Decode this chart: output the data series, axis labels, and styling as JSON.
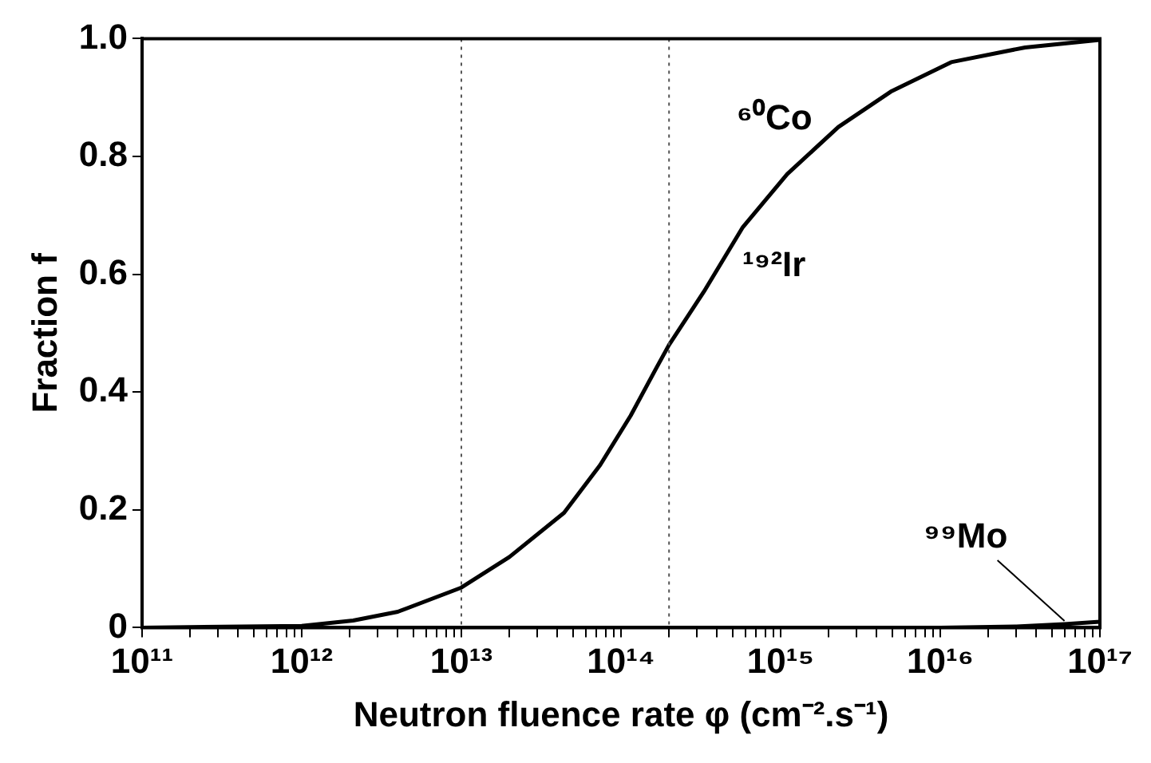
{
  "chart_data": {
    "type": "line",
    "xlabel": "Neutron fluence rate φ (cm⁻².s⁻¹)",
    "ylabel": "Fraction f",
    "log": "x",
    "grid": false,
    "legend": false,
    "marker": "none",
    "line_style": "solid",
    "xlim": [
      100000000000.0,
      1e+17
    ],
    "ylim": [
      0,
      1
    ],
    "xticks": [
      {
        "value": 100000000000.0,
        "label": "10¹¹"
      },
      {
        "value": 200000000000.0,
        "label": null
      },
      {
        "value": 300000000000.0,
        "label": null
      },
      {
        "value": 400000000000.0,
        "label": null
      },
      {
        "value": 500000000000.0,
        "label": null
      },
      {
        "value": 600000000000.0,
        "label": null
      },
      {
        "value": 700000000000.0,
        "label": null
      },
      {
        "value": 800000000000.0,
        "label": null
      },
      {
        "value": 900000000000.0,
        "label": null
      },
      {
        "value": 1000000000000.0,
        "label": "10¹²"
      },
      {
        "value": 2000000000000.0,
        "label": null
      },
      {
        "value": 3000000000000.0,
        "label": null
      },
      {
        "value": 4000000000000.0,
        "label": null
      },
      {
        "value": 5000000000000.0,
        "label": null
      },
      {
        "value": 6000000000000.0,
        "label": null
      },
      {
        "value": 7000000000000.0,
        "label": null
      },
      {
        "value": 8000000000000.0,
        "label": null
      },
      {
        "value": 9000000000000.0,
        "label": null
      },
      {
        "value": 10000000000000.0,
        "label": "10¹³"
      },
      {
        "value": 20000000000000.0,
        "label": null
      },
      {
        "value": 30000000000000.0,
        "label": null
      },
      {
        "value": 40000000000000.0,
        "label": null
      },
      {
        "value": 50000000000000.0,
        "label": null
      },
      {
        "value": 60000000000000.0,
        "label": null
      },
      {
        "value": 70000000000000.0,
        "label": null
      },
      {
        "value": 80000000000000.0,
        "label": null
      },
      {
        "value": 90000000000000.0,
        "label": null
      },
      {
        "value": 100000000000000.0,
        "label": "10¹⁴"
      },
      {
        "value": 200000000000000.0,
        "label": null
      },
      {
        "value": 300000000000000.0,
        "label": null
      },
      {
        "value": 400000000000000.0,
        "label": null
      },
      {
        "value": 500000000000000.0,
        "label": null
      },
      {
        "value": 600000000000000.0,
        "label": null
      },
      {
        "value": 700000000000000.0,
        "label": null
      },
      {
        "value": 800000000000000.0,
        "label": null
      },
      {
        "value": 900000000000000.0,
        "label": null
      },
      {
        "value": 1000000000000000.0,
        "label": "10¹⁵"
      },
      {
        "value": 2000000000000000.0,
        "label": null
      },
      {
        "value": 3000000000000000.0,
        "label": null
      },
      {
        "value": 4000000000000000.0,
        "label": null
      },
      {
        "value": 5000000000000000.0,
        "label": null
      },
      {
        "value": 6000000000000000.0,
        "label": null
      },
      {
        "value": 7000000000000000.0,
        "label": null
      },
      {
        "value": 8000000000000000.0,
        "label": null
      },
      {
        "value": 9000000000000000.0,
        "label": null
      },
      {
        "value": 1e+16,
        "label": "10¹⁶"
      },
      {
        "value": 2e+16,
        "label": null
      },
      {
        "value": 3e+16,
        "label": null
      },
      {
        "value": 4e+16,
        "label": null
      },
      {
        "value": 5e+16,
        "label": null
      },
      {
        "value": 6e+16,
        "label": null
      },
      {
        "value": 7e+16,
        "label": null
      },
      {
        "value": 8e+16,
        "label": null
      },
      {
        "value": 9e+16,
        "label": null
      },
      {
        "value": 1e+17,
        "label": "10¹⁷"
      }
    ],
    "yticks": [
      0,
      0.2,
      0.4,
      0.6,
      0.8,
      {
        "value": 1,
        "label": "1.0"
      }
    ],
    "ref_lines": [
      {
        "axis": "x",
        "value": 10000000000000.0,
        "line_style": "dotted",
        "color": "#555555"
      },
      {
        "axis": "x",
        "value": 200000000000000.0,
        "line_style": "dotted",
        "color": "#555555"
      }
    ],
    "annotations": [
      {
        "text": "⁶⁰Co",
        "x": 1100000000000000.0,
        "y": 0.77
      },
      {
        "text": "¹⁹²Ir",
        "x": 330000000000000.0,
        "y": 0.57
      },
      {
        "text": "⁹⁹Mo",
        "x": 6e+16,
        "y": 0.006
      }
    ],
    "series": [
      {
        "color": "#000000",
        "x": [
          100000000000.0,
          1000000000000.0,
          2100000000000.0,
          4000000000000.0,
          10000000000000.0,
          20000000000000.0,
          44000000000000.0,
          74000000000000.0,
          115000000000000.0,
          166000000000000.0,
          200000000000000.0,
          330000000000000.0,
          580000000000000.0,
          1100000000000000.0,
          2300000000000000.0,
          4900000000000000.0,
          1.17e+16,
          3.4e+16,
          1e+17
        ],
        "values": [
          0,
          0.003,
          0.012,
          0.027,
          0.068,
          0.12,
          0.195,
          0.276,
          0.36,
          0.44,
          0.48,
          0.57,
          0.68,
          0.77,
          0.85,
          0.91,
          0.96,
          0.985,
          0.998
        ]
      },
      {
        "color": "#000000",
        "x": [
          1e+16,
          3e+16,
          6e+16,
          1e+17
        ],
        "values": [
          0,
          0.002,
          0.006,
          0.01
        ]
      }
    ]
  }
}
